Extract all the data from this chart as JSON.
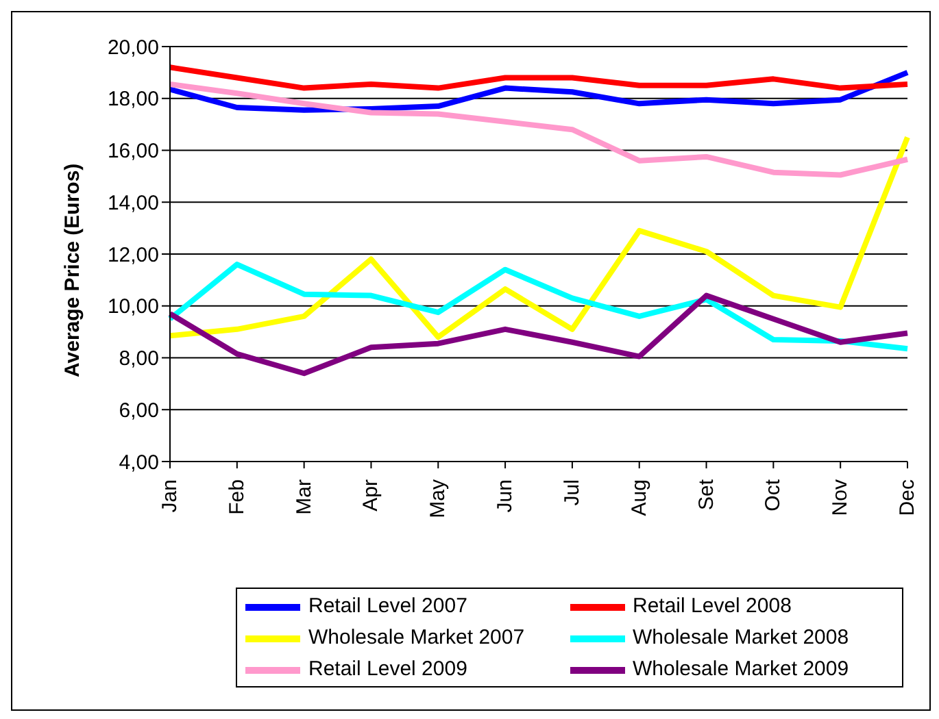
{
  "chart_data": {
    "type": "line",
    "ylabel": "Average Price (Euros)",
    "categories": [
      "Jan",
      "Feb",
      "Mar",
      "Apr",
      "May",
      "Jun",
      "Jul",
      "Aug",
      "Set",
      "Oct",
      "Nov",
      "Dec"
    ],
    "series": [
      {
        "name": "Retail Level 2007",
        "color": "#0000ff",
        "values": [
          18.35,
          17.65,
          17.55,
          17.6,
          17.7,
          18.4,
          18.25,
          17.8,
          17.95,
          17.8,
          17.95,
          19.0
        ]
      },
      {
        "name": "Retail Level 2008",
        "color": "#ff0000",
        "values": [
          19.2,
          18.8,
          18.4,
          18.55,
          18.4,
          18.8,
          18.8,
          18.5,
          18.5,
          18.75,
          18.4,
          18.55
        ]
      },
      {
        "name": "Wholesale Market 2007",
        "color": "#ffff00",
        "values": [
          8.85,
          9.1,
          9.6,
          11.8,
          8.8,
          10.65,
          9.1,
          12.9,
          12.1,
          10.4,
          9.95,
          16.5
        ]
      },
      {
        "name": "Wholesale Market 2008",
        "color": "#00ffff",
        "values": [
          9.5,
          11.6,
          10.45,
          10.4,
          9.75,
          11.4,
          10.3,
          9.6,
          10.25,
          8.7,
          8.65,
          8.35
        ]
      },
      {
        "name": "Retail Level 2009",
        "color": "#ff99cc",
        "values": [
          18.55,
          18.2,
          17.8,
          17.45,
          17.4,
          17.1,
          16.8,
          15.6,
          15.75,
          15.15,
          15.05,
          15.65
        ]
      },
      {
        "name": "Wholesale Market 2009",
        "color": "#800080",
        "values": [
          9.7,
          8.15,
          7.4,
          8.4,
          8.55,
          9.1,
          8.6,
          8.05,
          10.4,
          9.5,
          8.6,
          8.95
        ]
      }
    ],
    "ylim": [
      4,
      20
    ],
    "yticks": [
      {
        "value": 4,
        "label": "4,00"
      },
      {
        "value": 6,
        "label": "6,00"
      },
      {
        "value": 8,
        "label": "8,00"
      },
      {
        "value": 10,
        "label": "10,00"
      },
      {
        "value": 12,
        "label": "12,00"
      },
      {
        "value": 14,
        "label": "14,00"
      },
      {
        "value": 16,
        "label": "16,00"
      },
      {
        "value": 18,
        "label": "18,00"
      },
      {
        "value": 20,
        "label": "20,00"
      }
    ],
    "grid": "y",
    "legend": "bottom",
    "marker": "none",
    "line_style": "solid"
  }
}
